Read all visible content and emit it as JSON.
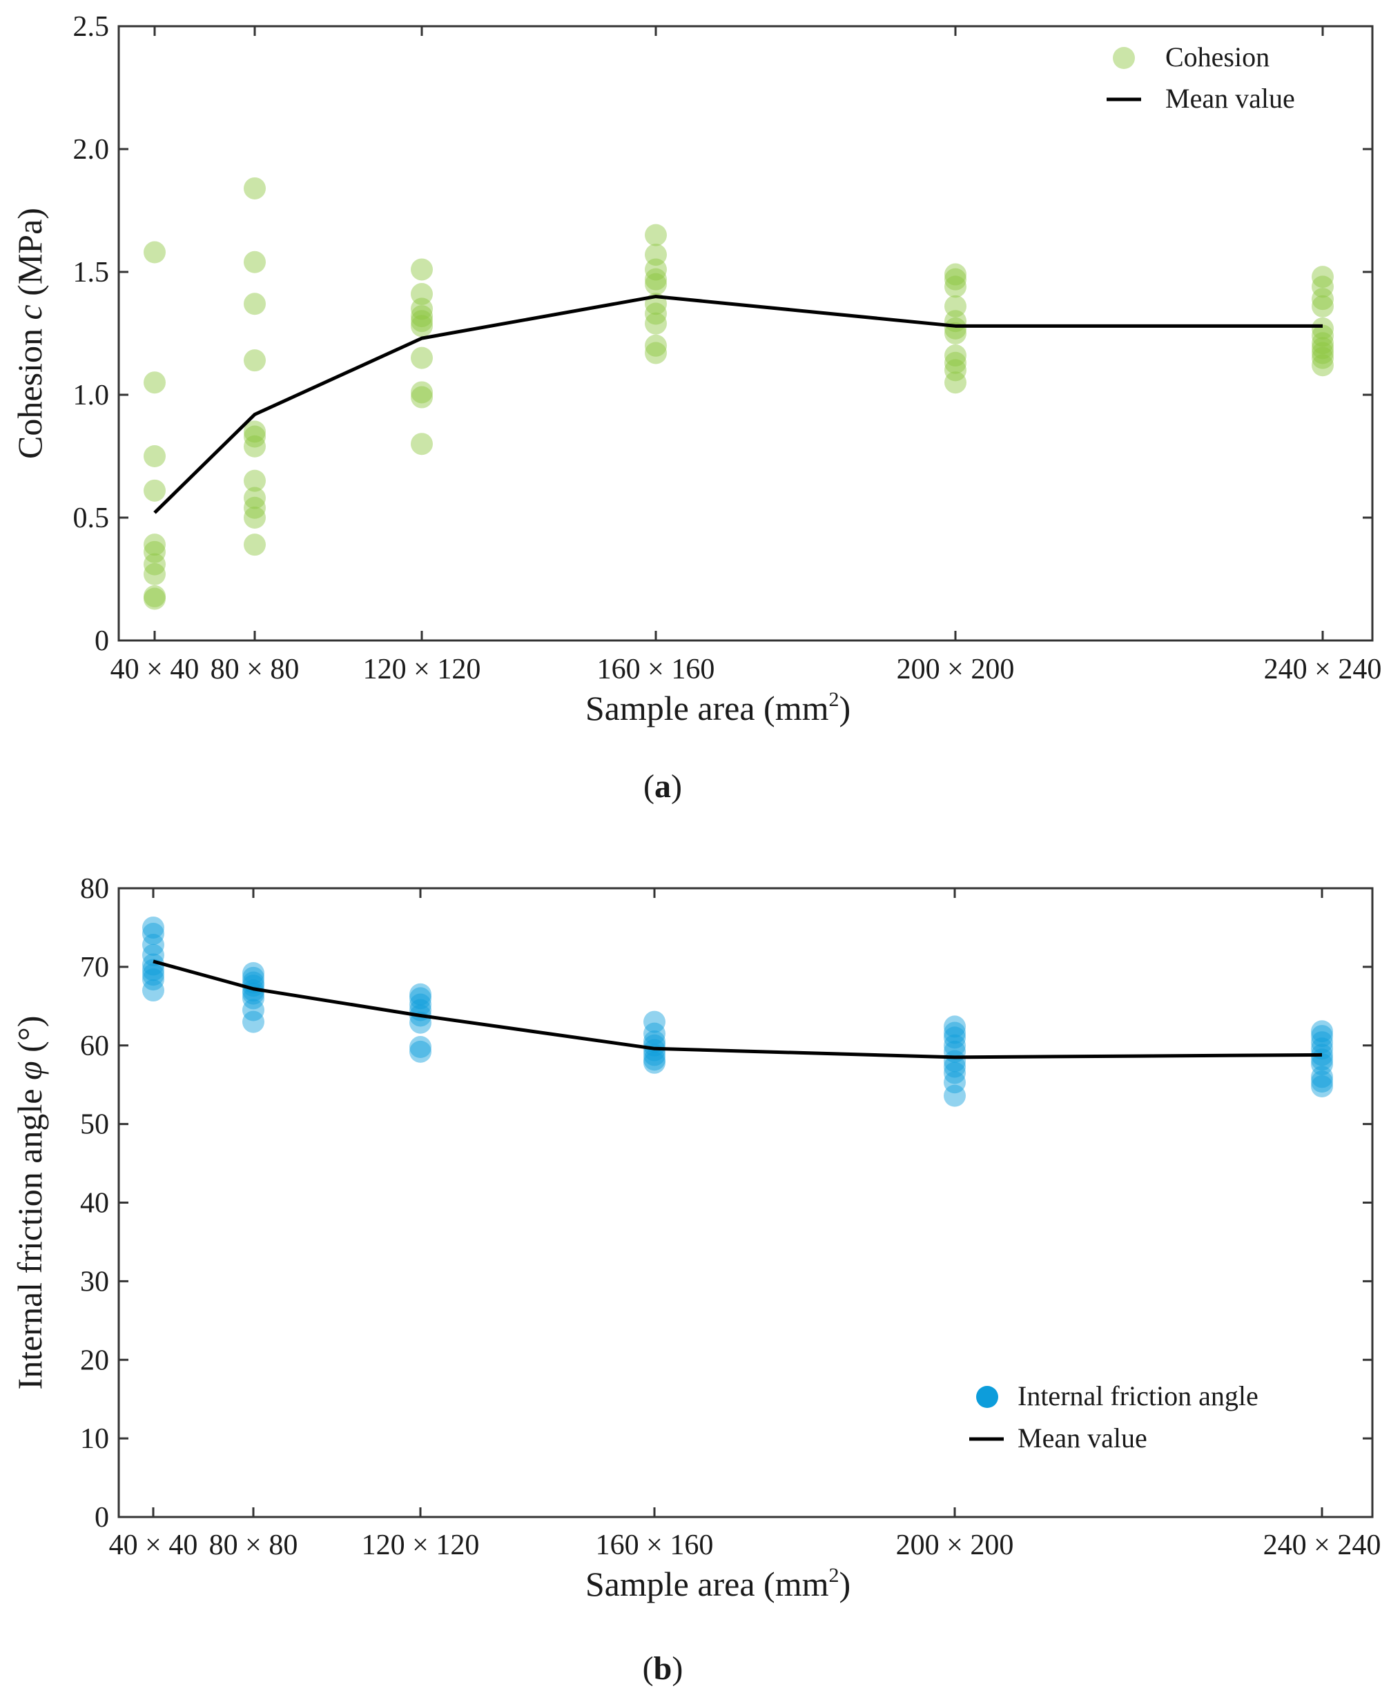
{
  "chart_data": [
    {
      "type": "scatter",
      "panel_label": "a",
      "categories": [
        "40 × 40",
        "80 × 80",
        "120 × 120",
        "160 × 160",
        "200 × 200",
        "240 × 240"
      ],
      "x": [
        40,
        80,
        120,
        160,
        200,
        240
      ],
      "xlabel_main": "Sample  area (mm",
      "xlabel_sup": "2",
      "xlabel_close": ")",
      "ylabel_main": "Cohesion ",
      "ylabel_var": "c",
      "ylabel_unit": " (MPa)",
      "ylim": [
        0,
        2.5
      ],
      "yticks": [
        0,
        0.5,
        1.0,
        1.5,
        2.0,
        2.5
      ],
      "ytick_labels": [
        "0",
        "0.5",
        "1.0",
        "1.5",
        "2.0",
        "2.5"
      ],
      "grid": false,
      "legend_position": "top-right",
      "series": [
        {
          "name": "Cohesion",
          "kind": "scatter",
          "color": "#8cc63f",
          "points": [
            [
              40,
              1.58
            ],
            [
              40,
              1.05
            ],
            [
              40,
              0.75
            ],
            [
              40,
              0.61
            ],
            [
              40,
              0.39
            ],
            [
              40,
              0.36
            ],
            [
              40,
              0.31
            ],
            [
              40,
              0.27
            ],
            [
              40,
              0.18
            ],
            [
              40,
              0.17
            ],
            [
              80,
              1.84
            ],
            [
              80,
              1.54
            ],
            [
              80,
              1.37
            ],
            [
              80,
              1.14
            ],
            [
              80,
              0.85
            ],
            [
              80,
              0.83
            ],
            [
              80,
              0.79
            ],
            [
              80,
              0.65
            ],
            [
              80,
              0.58
            ],
            [
              80,
              0.54
            ],
            [
              80,
              0.5
            ],
            [
              80,
              0.39
            ],
            [
              120,
              1.51
            ],
            [
              120,
              1.41
            ],
            [
              120,
              1.35
            ],
            [
              120,
              1.32
            ],
            [
              120,
              1.3
            ],
            [
              120,
              1.28
            ],
            [
              120,
              1.15
            ],
            [
              120,
              1.01
            ],
            [
              120,
              0.99
            ],
            [
              120,
              0.8
            ],
            [
              160,
              1.65
            ],
            [
              160,
              1.57
            ],
            [
              160,
              1.51
            ],
            [
              160,
              1.47
            ],
            [
              160,
              1.45
            ],
            [
              160,
              1.37
            ],
            [
              160,
              1.33
            ],
            [
              160,
              1.29
            ],
            [
              160,
              1.2
            ],
            [
              160,
              1.17
            ],
            [
              200,
              1.49
            ],
            [
              200,
              1.47
            ],
            [
              200,
              1.44
            ],
            [
              200,
              1.36
            ],
            [
              200,
              1.3
            ],
            [
              200,
              1.27
            ],
            [
              200,
              1.25
            ],
            [
              200,
              1.16
            ],
            [
              200,
              1.13
            ],
            [
              200,
              1.1
            ],
            [
              200,
              1.05
            ],
            [
              240,
              1.48
            ],
            [
              240,
              1.44
            ],
            [
              240,
              1.39
            ],
            [
              240,
              1.36
            ],
            [
              240,
              1.27
            ],
            [
              240,
              1.24
            ],
            [
              240,
              1.21
            ],
            [
              240,
              1.19
            ],
            [
              240,
              1.17
            ],
            [
              240,
              1.15
            ],
            [
              240,
              1.12
            ]
          ]
        },
        {
          "name": "Mean value",
          "kind": "line",
          "color": "#000000",
          "values": [
            0.52,
            0.92,
            1.23,
            1.4,
            1.28,
            1.28
          ]
        }
      ]
    },
    {
      "type": "scatter",
      "panel_label": "b",
      "categories": [
        "40 × 40",
        "80 × 80",
        "120 × 120",
        "160 × 160",
        "200 × 200",
        "240 × 240"
      ],
      "x": [
        40,
        80,
        120,
        160,
        200,
        240
      ],
      "xlabel_main": "Sample  area (mm",
      "xlabel_sup": "2",
      "xlabel_close": ")",
      "ylabel_main": "Internal friction angle ",
      "ylabel_var": "φ",
      "ylabel_unit": " (°)",
      "ylim": [
        0,
        80
      ],
      "yticks": [
        0,
        10,
        20,
        30,
        40,
        50,
        60,
        70,
        80
      ],
      "ytick_labels": [
        "0",
        "10",
        "20",
        "30",
        "40",
        "50",
        "60",
        "70",
        "80"
      ],
      "grid": false,
      "legend_position": "bottom-right",
      "series": [
        {
          "name": "Internal friction angle",
          "kind": "scatter",
          "color": "#0d9ddb",
          "points": [
            [
              40,
              75.0
            ],
            [
              40,
              74.2
            ],
            [
              40,
              72.8
            ],
            [
              40,
              71.5
            ],
            [
              40,
              70.3
            ],
            [
              40,
              69.6
            ],
            [
              40,
              69.0
            ],
            [
              40,
              68.4
            ],
            [
              40,
              67.0
            ],
            [
              80,
              69.2
            ],
            [
              80,
              68.6
            ],
            [
              80,
              68.0
            ],
            [
              80,
              67.6
            ],
            [
              80,
              67.0
            ],
            [
              80,
              66.6
            ],
            [
              80,
              66.0
            ],
            [
              80,
              64.5
            ],
            [
              80,
              63.0
            ],
            [
              120,
              66.5
            ],
            [
              120,
              66.0
            ],
            [
              120,
              65.2
            ],
            [
              120,
              64.5
            ],
            [
              120,
              63.8
            ],
            [
              120,
              62.9
            ],
            [
              120,
              59.8
            ],
            [
              120,
              59.2
            ],
            [
              160,
              63.0
            ],
            [
              160,
              61.5
            ],
            [
              160,
              60.5
            ],
            [
              160,
              60.0
            ],
            [
              160,
              59.4
            ],
            [
              160,
              58.8
            ],
            [
              160,
              58.2
            ],
            [
              160,
              57.8
            ],
            [
              200,
              62.4
            ],
            [
              200,
              61.6
            ],
            [
              200,
              61.0
            ],
            [
              200,
              60.0
            ],
            [
              200,
              59.2
            ],
            [
              200,
              58.0
            ],
            [
              200,
              57.3
            ],
            [
              200,
              56.5
            ],
            [
              200,
              55.3
            ],
            [
              200,
              53.6
            ],
            [
              240,
              61.8
            ],
            [
              240,
              61.2
            ],
            [
              240,
              60.4
            ],
            [
              240,
              59.6
            ],
            [
              240,
              58.8
            ],
            [
              240,
              58.2
            ],
            [
              240,
              57.6
            ],
            [
              240,
              56.0
            ],
            [
              240,
              55.4
            ],
            [
              240,
              54.8
            ]
          ]
        },
        {
          "name": "Mean value",
          "kind": "line",
          "color": "#000000",
          "values": [
            70.7,
            67.2,
            63.8,
            59.6,
            58.5,
            58.8
          ]
        }
      ]
    }
  ]
}
